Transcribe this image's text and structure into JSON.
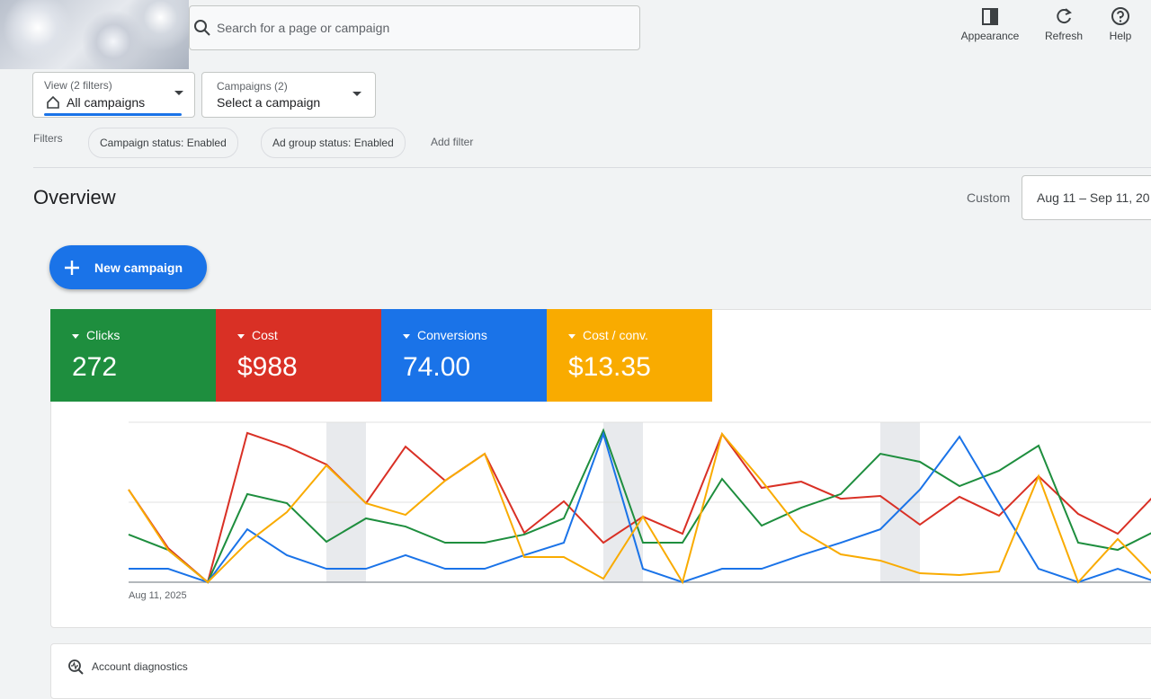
{
  "search_placeholder": "Search for a page or campaign",
  "toolbar": [
    "Appearance",
    "Refresh",
    "Help"
  ],
  "view_filter": {
    "label": "View (2 filters)",
    "value": "All campaigns"
  },
  "campaign_filter": {
    "label": "Campaigns (2)",
    "value": "Select a campaign"
  },
  "filters": {
    "label": "Filters",
    "chips": [
      "Campaign status: Enabled",
      "Ad group status: Enabled"
    ],
    "add": "Add filter"
  },
  "overview": {
    "title": "Overview",
    "range_label": "Custom",
    "date_range": "Aug 11 – Sep 11, 20"
  },
  "new_campaign": "New campaign",
  "metrics": [
    {
      "label": "Clicks",
      "value": "272",
      "color": "#1e8e3e"
    },
    {
      "label": "Cost",
      "value": "$988",
      "color": "#d93025"
    },
    {
      "label": "Conversions",
      "value": "74.00",
      "color": "#1a73e8"
    },
    {
      "label": "Cost / conv.",
      "value": "$13.35",
      "color": "#f9ab00"
    }
  ],
  "chart": {
    "type": "line",
    "x_start_label": "Aug 11, 2025",
    "ylim": [
      0,
      100
    ],
    "series": [
      {
        "color": "#d93025",
        "values": [
          57.9,
          21.3,
          0,
          93.3,
          84.8,
          73.6,
          49.4,
          84.8,
          63.5,
          80.3,
          30.9,
          50.6,
          24.7,
          41.0,
          30.3,
          92.7,
          59.0,
          62.9,
          52.2,
          53.9,
          36.0,
          53.4,
          41.6,
          66.3,
          42.7,
          30.3,
          56.2
        ]
      },
      {
        "color": "#1e8e3e",
        "values": [
          29.8,
          20.2,
          0,
          55.1,
          49.4,
          25.3,
          39.9,
          34.8,
          24.7,
          24.7,
          29.8,
          39.9,
          94.9,
          24.7,
          24.7,
          64.6,
          35.4,
          46.6,
          55.1,
          80.3,
          75.3,
          60.1,
          69.7,
          85.4,
          24.7,
          20.2,
          32.6
        ]
      },
      {
        "color": "#1a73e8",
        "values": [
          8.4,
          8.4,
          0,
          33.1,
          16.9,
          8.4,
          8.4,
          16.9,
          8.4,
          8.4,
          16.9,
          24.7,
          92.7,
          8.4,
          0,
          8.4,
          8.4,
          16.9,
          24.7,
          33.1,
          57.9,
          91.0,
          49.4,
          8.4,
          0,
          8.4,
          0
        ]
      },
      {
        "color": "#f9ab00",
        "values": [
          57.9,
          20.2,
          0,
          24.7,
          43.8,
          73.0,
          49.4,
          42.1,
          63.5,
          80.3,
          15.7,
          15.7,
          2.2,
          41.0,
          0,
          92.7,
          63.5,
          32.0,
          17.4,
          13.5,
          5.6,
          4.5,
          6.7,
          66.3,
          0,
          27.0,
          1.7
        ]
      }
    ]
  },
  "diagnostics": "Account diagnostics"
}
